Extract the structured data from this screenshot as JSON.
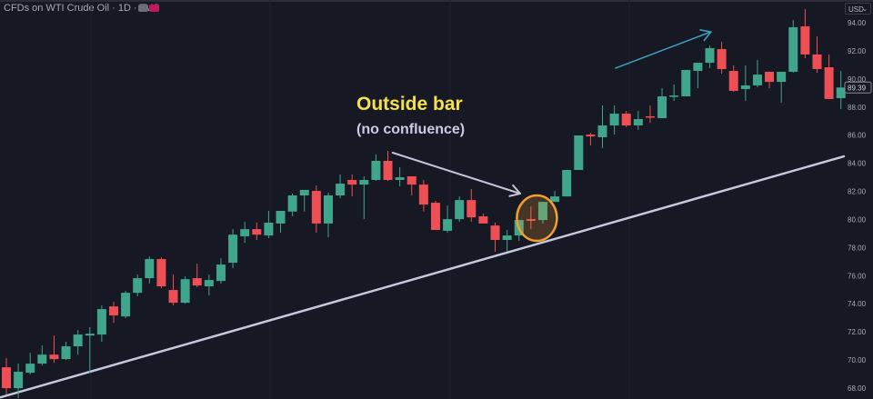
{
  "header": {
    "title": "CFDs on WTI Crude Oil · 1D · TVC",
    "currency_button": "USD",
    "badge_colors": [
      "#6b6e78",
      "#c2185b"
    ]
  },
  "annotations": {
    "headline": "Outside bar",
    "subheadline": "(no confluence)",
    "headline_color": "#f5e04e",
    "subheadline_color": "#c9cce6",
    "circle_color": "#f0a030",
    "trend_arrow_color": "#3d9fc0",
    "pointer_arrow_color": "#c2c4dc",
    "trendline_color": "#c4c8dc"
  },
  "chart_data": {
    "type": "candlestick",
    "title": "CFDs on WTI Crude Oil · 1D · TVC",
    "currency": "USD",
    "ylim": [
      67.3,
      95.2
    ],
    "y_ticks": [
      "94.00",
      "92.00",
      "90.00",
      "88.00",
      "86.00",
      "84.00",
      "82.00",
      "80.00",
      "78.00",
      "76.00",
      "74.00",
      "72.00",
      "70.00",
      "68.00"
    ],
    "last_price": "89.39",
    "up_color": "#3fa68b",
    "down_color": "#ee4f55",
    "grid": false,
    "candles": [
      [
        69.48,
        70.13,
        67.54,
        67.99
      ],
      [
        67.99,
        69.74,
        67.28,
        69.16
      ],
      [
        69.09,
        70.51,
        68.96,
        69.74
      ],
      [
        69.74,
        71.03,
        69.61,
        70.38
      ],
      [
        70.38,
        71.74,
        69.8,
        70.06
      ],
      [
        70.06,
        71.29,
        69.99,
        70.97
      ],
      [
        70.97,
        72.13,
        70.38,
        71.81
      ],
      [
        71.74,
        72.33,
        69.09,
        71.87
      ],
      [
        71.81,
        73.88,
        71.29,
        73.62
      ],
      [
        73.81,
        74.14,
        72.65,
        73.17
      ],
      [
        73.1,
        74.91,
        72.97,
        74.78
      ],
      [
        74.78,
        76.08,
        74.53,
        75.82
      ],
      [
        75.82,
        77.37,
        75.43,
        77.18
      ],
      [
        77.18,
        77.3,
        75.1,
        75.24
      ],
      [
        74.98,
        76.08,
        73.88,
        74.07
      ],
      [
        74.07,
        75.95,
        74.0,
        75.75
      ],
      [
        75.82,
        76.85,
        75.17,
        75.3
      ],
      [
        75.24,
        76.08,
        74.59,
        75.69
      ],
      [
        75.62,
        77.24,
        75.43,
        76.79
      ],
      [
        76.92,
        79.31,
        76.53,
        78.92
      ],
      [
        78.8,
        79.83,
        78.34,
        79.31
      ],
      [
        79.31,
        79.77,
        78.54,
        78.92
      ],
      [
        78.86,
        80.61,
        78.67,
        79.77
      ],
      [
        79.71,
        80.61,
        79.05,
        80.61
      ],
      [
        80.56,
        81.84,
        80.22,
        81.71
      ],
      [
        81.71,
        82.1,
        80.56,
        82.1
      ],
      [
        82.03,
        82.42,
        79.05,
        79.71
      ],
      [
        79.71,
        81.9,
        78.73,
        81.71
      ],
      [
        81.71,
        83.2,
        81.51,
        82.55
      ],
      [
        82.81,
        83.2,
        81.64,
        82.48
      ],
      [
        82.48,
        83.07,
        80.02,
        82.81
      ],
      [
        82.81,
        84.62,
        82.74,
        84.17
      ],
      [
        84.17,
        84.88,
        82.74,
        82.81
      ],
      [
        82.81,
        83.71,
        82.35,
        83.0
      ],
      [
        83.07,
        83.07,
        81.71,
        82.48
      ],
      [
        82.48,
        82.81,
        80.56,
        81.06
      ],
      [
        81.19,
        81.32,
        79.25,
        79.25
      ],
      [
        79.19,
        80.99,
        79.05,
        80.02
      ],
      [
        80.02,
        81.64,
        79.83,
        81.38
      ],
      [
        81.38,
        82.16,
        79.83,
        80.15
      ],
      [
        80.22,
        80.41,
        79.71,
        79.71
      ],
      [
        79.57,
        79.77,
        77.7,
        78.54
      ],
      [
        78.54,
        79.25,
        77.7,
        78.86
      ],
      [
        78.86,
        79.96,
        78.47,
        79.96
      ],
      [
        80.02,
        80.93,
        79.31,
        79.9
      ],
      [
        79.96,
        81.25,
        79.71,
        81.25
      ],
      [
        81.25,
        82.03,
        81.25,
        81.64
      ],
      [
        81.64,
        83.52,
        81.64,
        83.52
      ],
      [
        83.52,
        85.98,
        83.52,
        85.98
      ],
      [
        86.04,
        86.17,
        85.27,
        85.91
      ],
      [
        85.85,
        88.11,
        85.07,
        86.69
      ],
      [
        86.69,
        88.11,
        86.04,
        87.53
      ],
      [
        87.53,
        87.72,
        86.56,
        86.69
      ],
      [
        86.69,
        87.72,
        86.37,
        87.14
      ],
      [
        87.34,
        88.11,
        86.88,
        87.27
      ],
      [
        87.21,
        89.34,
        87.21,
        88.76
      ],
      [
        88.76,
        89.6,
        88.44,
        88.82
      ],
      [
        88.76,
        90.64,
        88.76,
        90.64
      ],
      [
        90.57,
        91.15,
        89.34,
        91.15
      ],
      [
        91.15,
        92.38,
        90.77,
        92.19
      ],
      [
        92.12,
        92.64,
        90.38,
        90.7
      ],
      [
        90.57,
        90.96,
        89.08,
        89.15
      ],
      [
        89.28,
        90.96,
        88.44,
        89.54
      ],
      [
        89.54,
        91.35,
        89.41,
        90.31
      ],
      [
        90.51,
        90.51,
        89.34,
        89.79
      ],
      [
        89.79,
        90.51,
        88.31,
        90.51
      ],
      [
        90.51,
        94.19,
        90.44,
        93.68
      ],
      [
        93.74,
        94.97,
        91.48,
        91.74
      ],
      [
        91.74,
        93.03,
        90.44,
        90.7
      ],
      [
        90.83,
        91.74,
        88.57,
        88.57
      ],
      [
        88.63,
        90.57,
        87.85,
        89.39
      ]
    ],
    "candle_fields": [
      "open",
      "high",
      "low",
      "close"
    ],
    "trendline": [
      {
        "bar": -0.5,
        "price": 67.34
      },
      {
        "bar": 70.25,
        "price": 84.49
      }
    ],
    "trend_arrow": [
      {
        "bar": 51.1,
        "price": 90.77
      },
      {
        "bar": 59.1,
        "price": 93.35
      }
    ],
    "pointer_arrow": [
      {
        "bar": 32.4,
        "price": 84.75
      },
      {
        "bar": 43.1,
        "price": 81.84
      }
    ],
    "highlight_circle": {
      "center_bar": 44.5,
      "center_price": 80.09
    }
  }
}
